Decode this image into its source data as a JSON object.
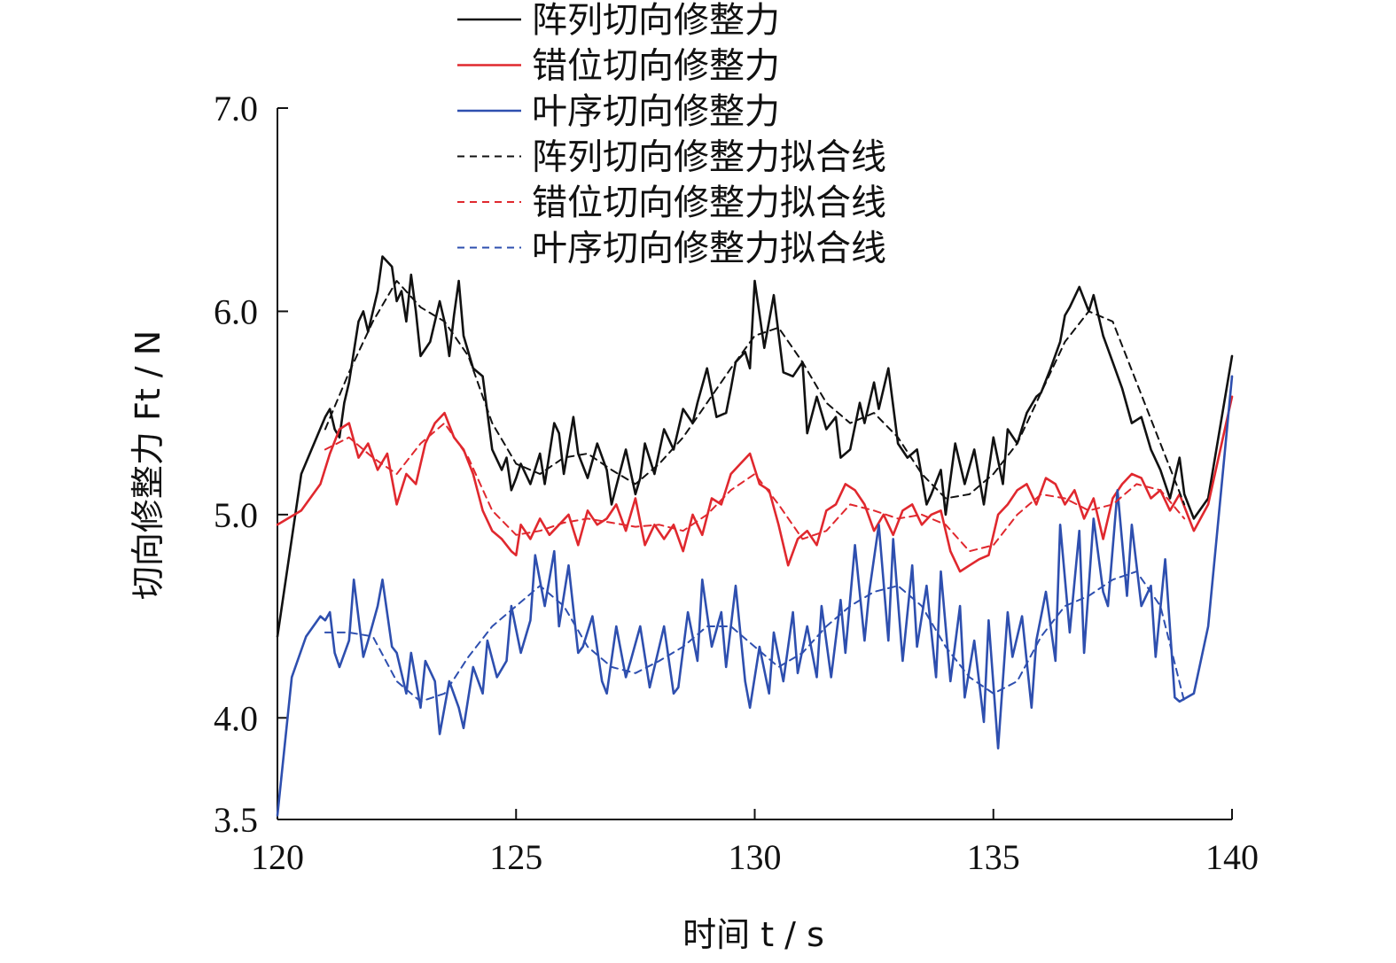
{
  "chart_data": {
    "type": "line",
    "title": "",
    "xlabel": "时间 t / s",
    "ylabel": "切向修整力 Ft / N",
    "xlim": [
      120,
      140
    ],
    "ylim": [
      3.5,
      7.0
    ],
    "xticks": [
      120,
      125,
      130,
      135,
      140
    ],
    "yticks": [
      3.5,
      4.0,
      5.0,
      6.0,
      7.0
    ],
    "xtick_labels": [
      "120",
      "125",
      "130",
      "135",
      "140"
    ],
    "ytick_labels": [
      "3.5",
      "4.0",
      "5.0",
      "6.0",
      "7.0"
    ],
    "grid": false,
    "legend_position": "top",
    "series": [
      {
        "name": "阵列切向修整力",
        "color": "#111111",
        "dash": "solid",
        "x": [
          120.0,
          120.5,
          121.0,
          121.1,
          121.2,
          121.3,
          121.4,
          121.5,
          121.7,
          121.8,
          121.9,
          122.1,
          122.2,
          122.4,
          122.5,
          122.6,
          122.7,
          122.8,
          122.9,
          123.0,
          123.2,
          123.4,
          123.5,
          123.6,
          123.7,
          123.8,
          123.9,
          124.1,
          124.3,
          124.5,
          124.7,
          124.8,
          124.9,
          125.0,
          125.1,
          125.3,
          125.5,
          125.6,
          125.8,
          125.9,
          126.0,
          126.2,
          126.3,
          126.5,
          126.7,
          126.9,
          127.0,
          127.3,
          127.5,
          127.6,
          127.7,
          127.9,
          128.1,
          128.3,
          128.5,
          128.7,
          128.8,
          129.0,
          129.2,
          129.4,
          129.5,
          129.6,
          129.8,
          129.9,
          130.0,
          130.2,
          130.4,
          130.6,
          130.8,
          131.0,
          131.1,
          131.3,
          131.5,
          131.7,
          131.8,
          132.0,
          132.2,
          132.3,
          132.5,
          132.6,
          132.8,
          133.0,
          133.2,
          133.4,
          133.6,
          133.7,
          133.9,
          134.0,
          134.2,
          134.4,
          134.6,
          134.8,
          135.0,
          135.2,
          135.3,
          135.5,
          135.7,
          135.9,
          136.0,
          136.2,
          136.4,
          136.5,
          136.6,
          136.8,
          137.0,
          137.1,
          137.3,
          137.5,
          137.7,
          137.9,
          138.1,
          138.3,
          138.5,
          138.7,
          138.9,
          139.0,
          139.2,
          139.5,
          140.0
        ],
        "y": [
          4.4,
          5.2,
          5.48,
          5.52,
          5.42,
          5.38,
          5.55,
          5.65,
          5.95,
          6.0,
          5.9,
          6.1,
          6.27,
          6.22,
          6.05,
          6.1,
          5.95,
          6.18,
          6.0,
          5.78,
          5.85,
          6.05,
          5.95,
          5.78,
          5.98,
          6.15,
          5.88,
          5.72,
          5.68,
          5.32,
          5.22,
          5.28,
          5.12,
          5.18,
          5.25,
          5.15,
          5.3,
          5.15,
          5.45,
          5.4,
          5.2,
          5.48,
          5.3,
          5.18,
          5.35,
          5.22,
          5.05,
          5.32,
          5.1,
          5.18,
          5.35,
          5.2,
          5.42,
          5.32,
          5.52,
          5.45,
          5.55,
          5.72,
          5.48,
          5.5,
          5.62,
          5.75,
          5.8,
          5.72,
          6.15,
          5.82,
          6.08,
          5.7,
          5.68,
          5.75,
          5.4,
          5.58,
          5.42,
          5.48,
          5.28,
          5.32,
          5.55,
          5.45,
          5.65,
          5.52,
          5.72,
          5.35,
          5.28,
          5.32,
          5.05,
          5.1,
          5.22,
          5.0,
          5.35,
          5.15,
          5.32,
          5.05,
          5.38,
          5.15,
          5.42,
          5.35,
          5.5,
          5.58,
          5.6,
          5.72,
          5.85,
          5.98,
          6.02,
          6.12,
          6.0,
          6.08,
          5.88,
          5.75,
          5.62,
          5.45,
          5.48,
          5.32,
          5.22,
          5.08,
          5.28,
          5.1,
          4.98,
          5.08,
          5.78
        ]
      },
      {
        "name": "错位切向修整力",
        "color": "#e0282e",
        "dash": "solid",
        "x": [
          120.0,
          120.5,
          120.9,
          121.1,
          121.3,
          121.5,
          121.7,
          121.9,
          122.1,
          122.3,
          122.5,
          122.7,
          122.9,
          123.1,
          123.3,
          123.5,
          123.7,
          123.9,
          124.1,
          124.3,
          124.5,
          124.7,
          124.9,
          125.0,
          125.1,
          125.3,
          125.5,
          125.7,
          125.9,
          126.1,
          126.3,
          126.5,
          126.7,
          126.9,
          127.1,
          127.3,
          127.5,
          127.7,
          127.9,
          128.1,
          128.3,
          128.5,
          128.7,
          128.9,
          129.1,
          129.3,
          129.5,
          129.7,
          129.9,
          130.1,
          130.3,
          130.5,
          130.7,
          130.9,
          131.1,
          131.3,
          131.5,
          131.7,
          131.9,
          132.1,
          132.3,
          132.5,
          132.7,
          132.9,
          133.1,
          133.3,
          133.5,
          133.7,
          133.9,
          134.1,
          134.3,
          134.5,
          134.7,
          134.9,
          135.1,
          135.3,
          135.5,
          135.7,
          135.9,
          136.1,
          136.3,
          136.5,
          136.7,
          136.9,
          137.1,
          137.3,
          137.5,
          137.7,
          137.9,
          138.1,
          138.3,
          138.5,
          138.7,
          138.9,
          139.2,
          139.5,
          140.0
        ],
        "y": [
          4.95,
          5.02,
          5.15,
          5.3,
          5.42,
          5.45,
          5.28,
          5.35,
          5.22,
          5.3,
          5.05,
          5.2,
          5.15,
          5.35,
          5.45,
          5.5,
          5.38,
          5.32,
          5.2,
          5.02,
          4.92,
          4.88,
          4.82,
          4.8,
          4.95,
          4.88,
          4.98,
          4.9,
          4.95,
          5.0,
          4.85,
          5.02,
          4.95,
          4.98,
          5.05,
          4.92,
          5.08,
          4.85,
          4.95,
          4.88,
          4.95,
          4.82,
          5.0,
          4.9,
          5.08,
          5.05,
          5.2,
          5.25,
          5.3,
          5.15,
          5.12,
          4.95,
          4.75,
          4.88,
          4.92,
          4.85,
          5.02,
          5.05,
          5.15,
          5.12,
          5.05,
          4.92,
          5.0,
          4.9,
          5.02,
          5.05,
          4.95,
          5.0,
          5.02,
          4.82,
          4.72,
          4.75,
          4.78,
          4.8,
          5.0,
          5.05,
          5.12,
          5.15,
          5.05,
          5.18,
          5.15,
          5.05,
          5.12,
          4.98,
          5.08,
          4.88,
          5.08,
          5.15,
          5.2,
          5.18,
          5.08,
          5.12,
          5.02,
          5.1,
          4.92,
          5.05,
          5.58
        ]
      },
      {
        "name": "叶序切向修整力",
        "color": "#2e4faf",
        "dash": "solid",
        "x": [
          120.0,
          120.3,
          120.6,
          120.9,
          121.0,
          121.1,
          121.2,
          121.3,
          121.5,
          121.6,
          121.8,
          121.9,
          122.1,
          122.2,
          122.4,
          122.5,
          122.7,
          122.8,
          123.0,
          123.1,
          123.3,
          123.4,
          123.6,
          123.8,
          123.9,
          124.1,
          124.3,
          124.4,
          124.6,
          124.8,
          124.9,
          125.1,
          125.3,
          125.4,
          125.6,
          125.8,
          125.9,
          126.1,
          126.3,
          126.4,
          126.6,
          126.8,
          126.9,
          127.1,
          127.3,
          127.4,
          127.6,
          127.8,
          127.9,
          128.1,
          128.3,
          128.4,
          128.6,
          128.8,
          128.9,
          129.1,
          129.3,
          129.4,
          129.6,
          129.8,
          129.9,
          130.1,
          130.3,
          130.4,
          130.6,
          130.8,
          130.9,
          131.1,
          131.3,
          131.4,
          131.6,
          131.8,
          131.9,
          132.1,
          132.3,
          132.4,
          132.6,
          132.8,
          132.9,
          133.1,
          133.3,
          133.4,
          133.6,
          133.8,
          133.9,
          134.1,
          134.3,
          134.4,
          134.6,
          134.8,
          134.9,
          135.1,
          135.3,
          135.4,
          135.6,
          135.8,
          135.9,
          136.1,
          136.3,
          136.4,
          136.6,
          136.8,
          136.9,
          137.1,
          137.3,
          137.4,
          137.6,
          137.8,
          137.9,
          138.1,
          138.3,
          138.4,
          138.6,
          138.8,
          138.9,
          139.2,
          139.5,
          140.0
        ],
        "y": [
          3.52,
          4.2,
          4.4,
          4.5,
          4.48,
          4.52,
          4.32,
          4.25,
          4.38,
          4.68,
          4.3,
          4.38,
          4.55,
          4.68,
          4.35,
          4.32,
          4.12,
          4.32,
          4.05,
          4.28,
          4.18,
          3.92,
          4.18,
          4.05,
          3.95,
          4.25,
          4.12,
          4.38,
          4.2,
          4.28,
          4.55,
          4.32,
          4.48,
          4.8,
          4.55,
          4.82,
          4.45,
          4.75,
          4.32,
          4.35,
          4.5,
          4.18,
          4.12,
          4.45,
          4.2,
          4.28,
          4.45,
          4.15,
          4.25,
          4.45,
          4.12,
          4.15,
          4.52,
          4.28,
          4.68,
          4.35,
          4.52,
          4.25,
          4.65,
          4.18,
          4.05,
          4.35,
          4.12,
          4.42,
          4.18,
          4.52,
          4.22,
          4.45,
          4.2,
          4.55,
          4.2,
          4.58,
          4.32,
          4.85,
          4.38,
          4.62,
          4.95,
          4.38,
          4.88,
          4.28,
          4.75,
          4.35,
          4.65,
          4.2,
          4.72,
          4.18,
          4.55,
          4.1,
          4.38,
          3.98,
          4.48,
          3.85,
          4.52,
          4.3,
          4.5,
          4.05,
          4.38,
          4.62,
          4.28,
          4.95,
          4.42,
          4.92,
          4.32,
          4.98,
          4.62,
          4.55,
          5.12,
          4.6,
          4.95,
          4.55,
          4.65,
          4.3,
          4.78,
          4.1,
          4.08,
          4.12,
          4.45,
          5.68
        ]
      },
      {
        "name": "阵列切向修整力拟合线",
        "color": "#111111",
        "dash": "dashed",
        "x": [
          121.0,
          121.5,
          122.0,
          122.5,
          123.0,
          123.5,
          124.0,
          124.5,
          125.0,
          125.5,
          126.0,
          126.5,
          127.0,
          127.5,
          128.0,
          128.5,
          129.0,
          129.5,
          130.0,
          130.5,
          131.0,
          131.5,
          132.0,
          132.5,
          133.0,
          133.5,
          134.0,
          134.5,
          135.0,
          135.5,
          136.0,
          136.5,
          137.0,
          137.5,
          138.0,
          138.5,
          139.0
        ],
        "y": [
          5.42,
          5.7,
          5.95,
          6.15,
          6.02,
          5.95,
          5.78,
          5.45,
          5.25,
          5.2,
          5.28,
          5.3,
          5.22,
          5.15,
          5.25,
          5.38,
          5.55,
          5.72,
          5.88,
          5.92,
          5.75,
          5.55,
          5.45,
          5.5,
          5.38,
          5.2,
          5.08,
          5.1,
          5.2,
          5.35,
          5.6,
          5.85,
          6.0,
          5.95,
          5.65,
          5.35,
          5.05
        ]
      },
      {
        "name": "错位切向修整力拟合线",
        "color": "#e0282e",
        "dash": "dashed",
        "x": [
          121.0,
          121.5,
          122.0,
          122.5,
          123.0,
          123.5,
          124.0,
          124.5,
          125.0,
          125.5,
          126.0,
          126.5,
          127.0,
          127.5,
          128.0,
          128.5,
          129.0,
          129.5,
          130.0,
          130.5,
          131.0,
          131.5,
          132.0,
          132.5,
          133.0,
          133.5,
          134.0,
          134.5,
          135.0,
          135.5,
          136.0,
          136.5,
          137.0,
          137.5,
          138.0,
          138.5,
          139.0
        ],
        "y": [
          5.32,
          5.38,
          5.28,
          5.2,
          5.35,
          5.45,
          5.28,
          5.02,
          4.9,
          4.92,
          4.96,
          4.98,
          4.96,
          4.94,
          4.95,
          4.92,
          5.0,
          5.12,
          5.2,
          5.05,
          4.88,
          4.92,
          5.05,
          5.02,
          4.98,
          5.0,
          4.95,
          4.82,
          4.85,
          5.0,
          5.1,
          5.08,
          5.02,
          5.05,
          5.15,
          5.12,
          4.98
        ]
      },
      {
        "name": "叶序切向修整力拟合线",
        "color": "#2e4faf",
        "dash": "dashed",
        "x": [
          121.0,
          121.5,
          122.0,
          122.5,
          123.0,
          123.5,
          124.0,
          124.5,
          125.0,
          125.5,
          126.0,
          126.5,
          127.0,
          127.5,
          128.0,
          128.5,
          129.0,
          129.5,
          130.0,
          130.5,
          131.0,
          131.5,
          132.0,
          132.5,
          133.0,
          133.5,
          134.0,
          134.5,
          135.0,
          135.5,
          136.0,
          136.5,
          137.0,
          137.5,
          138.0,
          138.5,
          139.0
        ],
        "y": [
          4.42,
          4.42,
          4.4,
          4.18,
          4.08,
          4.12,
          4.3,
          4.45,
          4.55,
          4.65,
          4.55,
          4.35,
          4.25,
          4.22,
          4.28,
          4.35,
          4.45,
          4.45,
          4.35,
          4.25,
          4.32,
          4.45,
          4.55,
          4.62,
          4.65,
          4.55,
          4.35,
          4.2,
          4.12,
          4.18,
          4.4,
          4.55,
          4.6,
          4.68,
          4.72,
          4.55,
          4.08
        ]
      }
    ]
  }
}
